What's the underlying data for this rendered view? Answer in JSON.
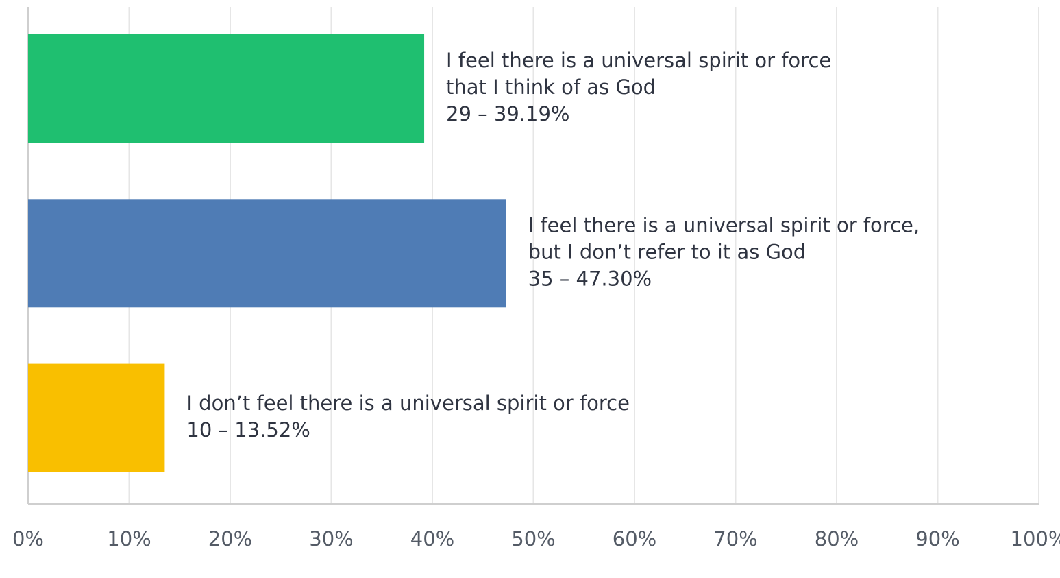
{
  "chart_data": {
    "type": "barh",
    "categories": [
      [
        "I feel there is a universal spirit or force",
        "that I think of as God"
      ],
      [
        "I feel there is a universal spirit or force,",
        "but I don’t refer to it as God"
      ],
      [
        "I don’t feel there is a universal spirit or force"
      ]
    ],
    "values": [
      39.19,
      47.3,
      13.52
    ],
    "value_labels": [
      "29 – 39.19%",
      "35 – 47.30%",
      "10 – 13.52%"
    ],
    "colors": [
      "#1fbf70",
      "#4f7cb5",
      "#f9bf00"
    ],
    "xlim": [
      0,
      100
    ],
    "xticks": [
      {
        "value": 0,
        "label": "0%"
      },
      {
        "value": 10,
        "label": "10%"
      },
      {
        "value": 20,
        "label": "20%"
      },
      {
        "value": 30,
        "label": "30%"
      },
      {
        "value": 40,
        "label": "40%"
      },
      {
        "value": 50,
        "label": "50%"
      },
      {
        "value": 60,
        "label": "60%"
      },
      {
        "value": 70,
        "label": "70%"
      },
      {
        "value": 80,
        "label": "80%"
      },
      {
        "value": 90,
        "label": "90%"
      },
      {
        "value": 100,
        "label": "100%"
      }
    ],
    "grid": true
  }
}
